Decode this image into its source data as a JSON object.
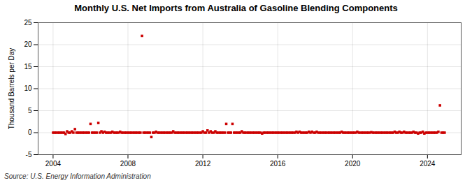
{
  "chart_data": {
    "type": "scatter",
    "title": "Monthly U.S. Net Imports from Australia of Gasoline Blending Components",
    "ylabel": "Thousand Barrels per Day",
    "source": "Source: U.S. Energy Information Administration",
    "color": "#cc0000",
    "marker": "square",
    "grid": true,
    "xlim": [
      2003.2,
      2025.8
    ],
    "ylim": [
      -5,
      25
    ],
    "xticks": [
      2004,
      2008,
      2012,
      2016,
      2020,
      2024
    ],
    "yticks": [
      -5,
      0,
      5,
      10,
      15,
      20,
      25
    ],
    "x": [
      2004.0,
      2004.083,
      2004.167,
      2004.25,
      2004.333,
      2004.417,
      2004.5,
      2004.583,
      2004.667,
      2004.75,
      2004.833,
      2004.917,
      2005.0,
      2005.083,
      2005.167,
      2005.25,
      2005.333,
      2005.417,
      2005.5,
      2005.583,
      2005.667,
      2005.75,
      2005.833,
      2005.917,
      2006.0,
      2006.083,
      2006.167,
      2006.25,
      2006.333,
      2006.417,
      2006.5,
      2006.583,
      2006.667,
      2006.75,
      2006.833,
      2006.917,
      2007.0,
      2007.083,
      2007.167,
      2007.25,
      2007.333,
      2007.417,
      2007.5,
      2007.583,
      2007.667,
      2007.75,
      2007.833,
      2007.917,
      2008.0,
      2008.083,
      2008.167,
      2008.25,
      2008.333,
      2008.417,
      2008.5,
      2008.583,
      2008.667,
      2008.75,
      2008.833,
      2008.917,
      2009.0,
      2009.083,
      2009.167,
      2009.25,
      2009.333,
      2009.417,
      2009.5,
      2009.583,
      2009.667,
      2009.75,
      2009.833,
      2009.917,
      2010.0,
      2010.083,
      2010.167,
      2010.25,
      2010.333,
      2010.417,
      2010.5,
      2010.583,
      2010.667,
      2010.75,
      2010.833,
      2010.917,
      2011.0,
      2011.083,
      2011.167,
      2011.25,
      2011.333,
      2011.417,
      2011.5,
      2011.583,
      2011.667,
      2011.75,
      2011.833,
      2011.917,
      2012.0,
      2012.083,
      2012.167,
      2012.25,
      2012.333,
      2012.417,
      2012.5,
      2012.583,
      2012.667,
      2012.75,
      2012.833,
      2012.917,
      2013.0,
      2013.083,
      2013.167,
      2013.25,
      2013.333,
      2013.417,
      2013.5,
      2013.583,
      2013.667,
      2013.75,
      2013.833,
      2013.917,
      2014.0,
      2014.083,
      2014.167,
      2014.25,
      2014.333,
      2014.417,
      2014.5,
      2014.583,
      2014.667,
      2014.75,
      2014.833,
      2014.917,
      2015.0,
      2015.083,
      2015.167,
      2015.25,
      2015.333,
      2015.417,
      2015.5,
      2015.583,
      2015.667,
      2015.75,
      2015.833,
      2015.917,
      2016.0,
      2016.083,
      2016.167,
      2016.25,
      2016.333,
      2016.417,
      2016.5,
      2016.583,
      2016.667,
      2016.75,
      2016.833,
      2016.917,
      2017.0,
      2017.083,
      2017.167,
      2017.25,
      2017.333,
      2017.417,
      2017.5,
      2017.583,
      2017.667,
      2017.75,
      2017.833,
      2017.917,
      2018.0,
      2018.083,
      2018.167,
      2018.25,
      2018.333,
      2018.417,
      2018.5,
      2018.583,
      2018.667,
      2018.75,
      2018.833,
      2018.917,
      2019.0,
      2019.083,
      2019.167,
      2019.25,
      2019.333,
      2019.417,
      2019.5,
      2019.583,
      2019.667,
      2019.75,
      2019.833,
      2019.917,
      2020.0,
      2020.083,
      2020.167,
      2020.25,
      2020.333,
      2020.417,
      2020.5,
      2020.583,
      2020.667,
      2020.75,
      2020.833,
      2020.917,
      2021.0,
      2021.083,
      2021.167,
      2021.25,
      2021.333,
      2021.417,
      2021.5,
      2021.583,
      2021.667,
      2021.75,
      2021.833,
      2021.917,
      2022.0,
      2022.083,
      2022.167,
      2022.25,
      2022.333,
      2022.417,
      2022.5,
      2022.583,
      2022.667,
      2022.75,
      2022.833,
      2022.917,
      2023.0,
      2023.083,
      2023.167,
      2023.25,
      2023.333,
      2023.417,
      2023.5,
      2023.583,
      2023.667,
      2023.75,
      2023.833,
      2023.917,
      2024.0,
      2024.083,
      2024.167,
      2024.25,
      2024.333,
      2024.417,
      2024.5,
      2024.583,
      2024.667,
      2024.75,
      2024.833,
      2024.917
    ],
    "values": [
      0,
      0,
      0,
      0,
      0,
      0,
      0,
      0,
      -0.3,
      0.3,
      0,
      0,
      0.3,
      0,
      0.8,
      0,
      0,
      0,
      0,
      0,
      0,
      0,
      0,
      0,
      2.0,
      0,
      0,
      0,
      0,
      2.2,
      0,
      0.3,
      0,
      0.2,
      0,
      0,
      0,
      0,
      0.2,
      0,
      0,
      0,
      0,
      0.2,
      0,
      0,
      0,
      0,
      0,
      0,
      0,
      0,
      0,
      0,
      0,
      0,
      0,
      22.0,
      0,
      0,
      0,
      0,
      0,
      -1.0,
      0,
      0,
      0.2,
      0,
      0,
      0,
      0,
      0,
      0,
      0,
      0,
      0,
      0,
      0.3,
      0,
      0,
      0,
      0,
      0,
      0,
      0,
      0,
      0,
      0,
      0,
      0,
      0,
      0,
      0,
      0,
      0,
      0,
      0.3,
      0,
      0,
      0.5,
      0,
      0.3,
      0,
      0,
      0.3,
      0,
      0,
      0,
      0,
      0,
      0,
      2.0,
      0,
      0,
      0,
      2.0,
      0,
      0,
      0,
      0,
      0,
      0.3,
      0,
      0,
      0,
      0,
      0,
      0,
      0,
      0,
      0,
      0,
      0,
      0,
      -0.2,
      0,
      0,
      0,
      0,
      0,
      0,
      0,
      0,
      0,
      0,
      0,
      0,
      0,
      0,
      0,
      0,
      0,
      0,
      0,
      0,
      0,
      0.2,
      0,
      0.2,
      0,
      0,
      0,
      0,
      0,
      0.2,
      0,
      0.2,
      0,
      0,
      0.2,
      0,
      0,
      0,
      0,
      0,
      0,
      0,
      0,
      0,
      0,
      0,
      0,
      0,
      0,
      0,
      0.2,
      0,
      0,
      0,
      0,
      0,
      0,
      0,
      0,
      0,
      0.2,
      0,
      0,
      0,
      0,
      0,
      0,
      0,
      0,
      0.1,
      0,
      0,
      0,
      0,
      0,
      0,
      0,
      0,
      0,
      0,
      0,
      0,
      0,
      0,
      0.2,
      0,
      0,
      0.2,
      0,
      0,
      0.2,
      0,
      0,
      0,
      0,
      0,
      0.2,
      0,
      0,
      -0.2,
      0,
      0,
      0.2,
      -0.2,
      0,
      0,
      0,
      0,
      0,
      0,
      0,
      0,
      0.2,
      6.2,
      0,
      0,
      0
    ]
  }
}
